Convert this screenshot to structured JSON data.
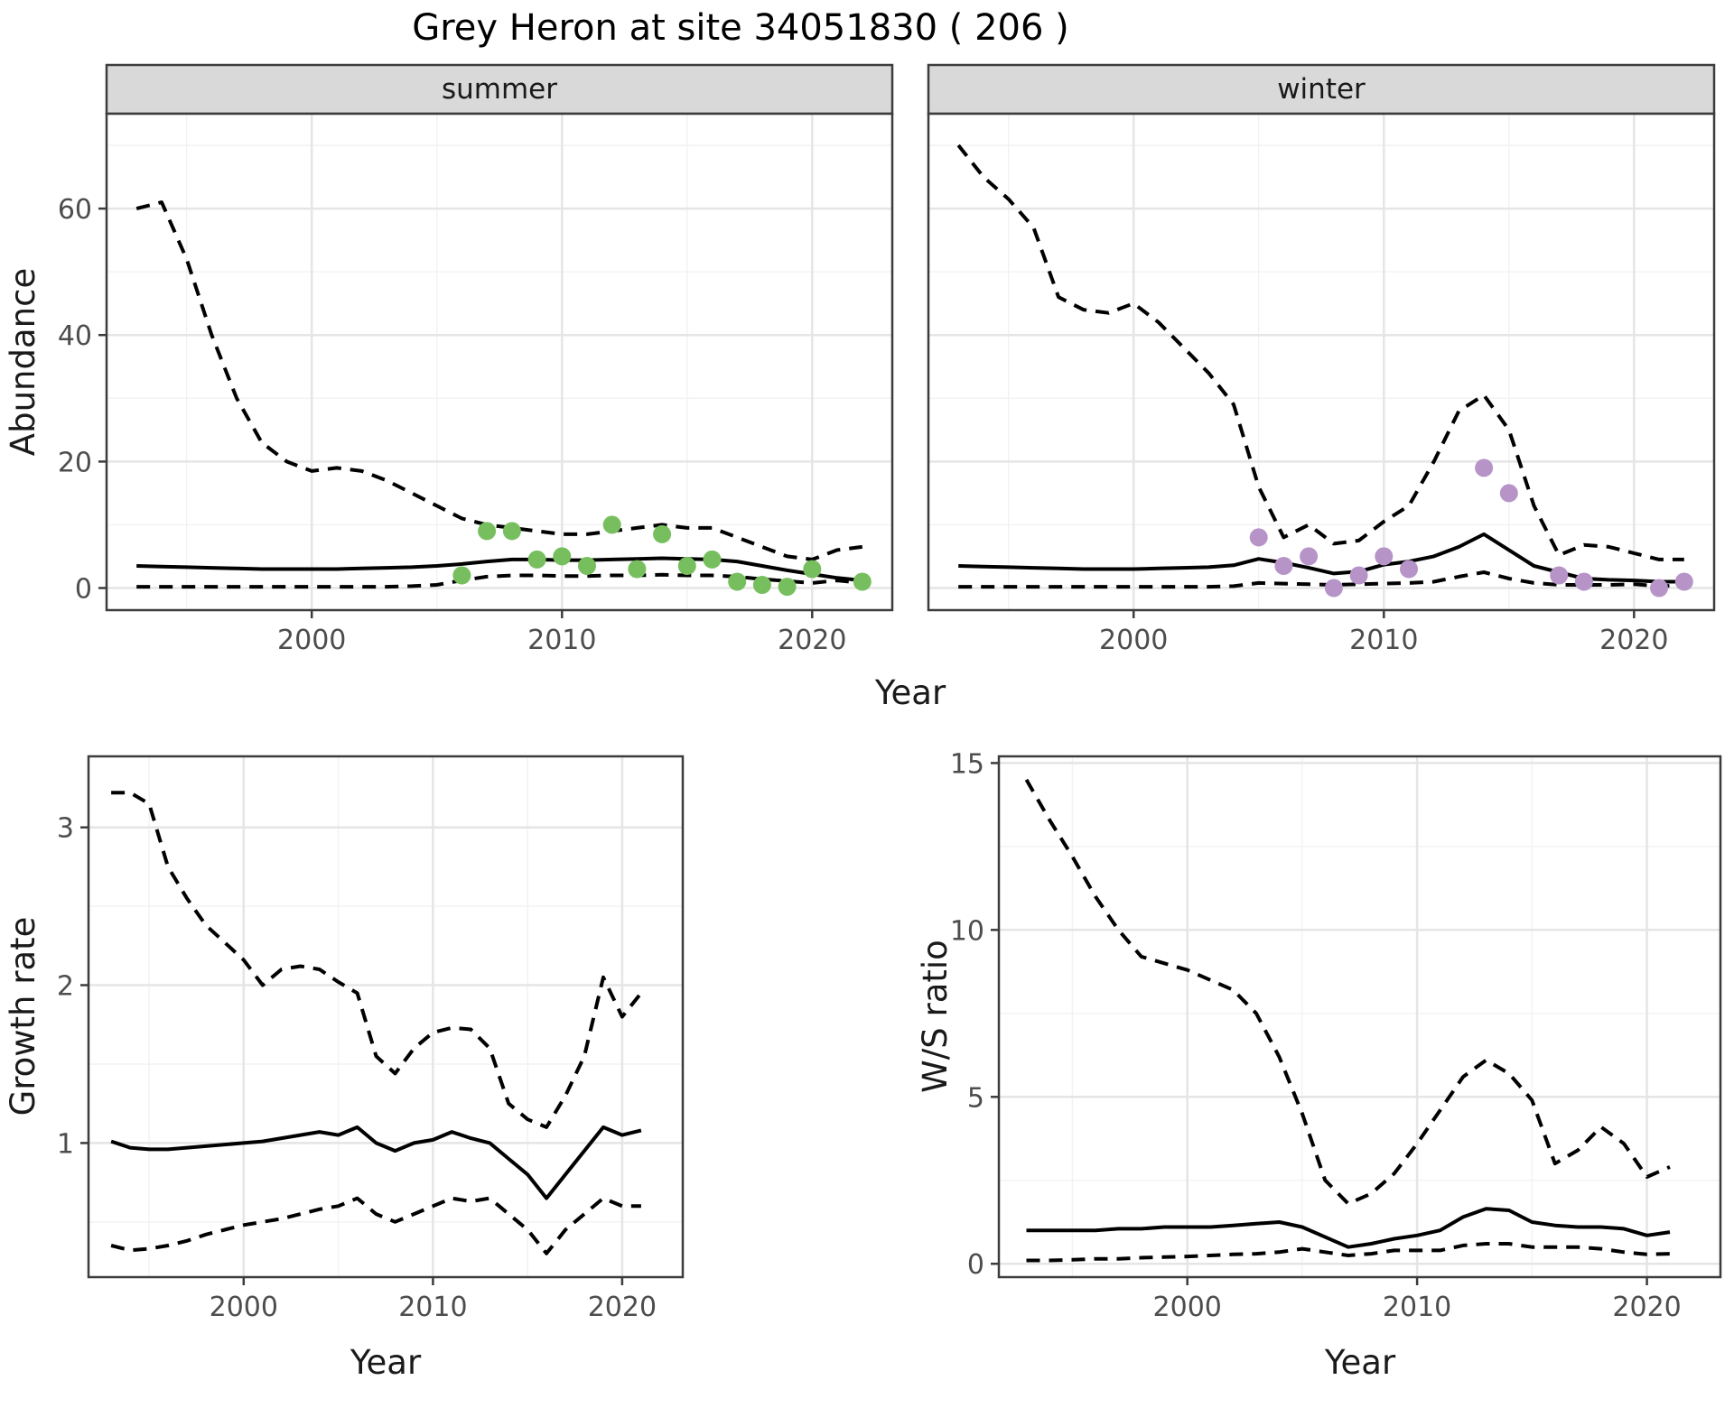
{
  "labels": {
    "title": "Grey Heron at site 34051830 ( 206 )",
    "abundance_ylabel": "Abundance",
    "top_xlabel": "Year",
    "growth_ylabel": "Growth rate",
    "growth_xlabel": "Year",
    "ws_ylabel": "W/S ratio",
    "ws_xlabel": "Year"
  },
  "colors": {
    "summer_point": "#77bf5e",
    "winter_point": "#b794c8",
    "line": "#000000",
    "strip_bg": "#d9d9d9",
    "panel_border": "#3c3c3c",
    "grid_major": "#e5e5e5",
    "grid_minor": "#f2f2f2",
    "axis_text": "#4d4d4d"
  },
  "chart_data": [
    {
      "id": "abundance-summer",
      "type": "line",
      "facet_label": "summer",
      "xlabel": "Year",
      "ylabel": "Abundance",
      "xlim": [
        1991.8,
        2023.2
      ],
      "ylim": [
        -3.5,
        75
      ],
      "x_ticks": [
        2000,
        2010,
        2020
      ],
      "x_minor": [
        1995,
        2005,
        2015
      ],
      "y_ticks": [
        0,
        20,
        40,
        60
      ],
      "y_minor": [
        10,
        30,
        50,
        70
      ],
      "grid": true,
      "legend": "none",
      "years": [
        1993,
        1994,
        1995,
        1996,
        1997,
        1998,
        1999,
        2000,
        2001,
        2002,
        2003,
        2004,
        2005,
        2006,
        2007,
        2008,
        2009,
        2010,
        2011,
        2012,
        2013,
        2014,
        2015,
        2016,
        2017,
        2018,
        2019,
        2020,
        2021,
        2022
      ],
      "series": [
        {
          "name": "upper-ci",
          "style": "dashed",
          "values": [
            60,
            61,
            52,
            40,
            30,
            23,
            20,
            18.5,
            19,
            18.5,
            17,
            15,
            13,
            11,
            10,
            9.5,
            9,
            8.5,
            8.5,
            9,
            9.5,
            10,
            9.5,
            9.5,
            8,
            6.5,
            5,
            4.5,
            6,
            6.5
          ]
        },
        {
          "name": "median",
          "style": "solid",
          "values": [
            3.5,
            3.4,
            3.3,
            3.2,
            3.1,
            3.0,
            3.0,
            3.0,
            3.0,
            3.1,
            3.2,
            3.3,
            3.5,
            3.8,
            4.2,
            4.5,
            4.5,
            4.4,
            4.4,
            4.5,
            4.6,
            4.7,
            4.6,
            4.5,
            4.2,
            3.5,
            2.8,
            2.2,
            1.6,
            1.2
          ]
        },
        {
          "name": "lower-ci",
          "style": "dashed",
          "values": [
            0.2,
            0.2,
            0.2,
            0.2,
            0.2,
            0.2,
            0.2,
            0.2,
            0.2,
            0.2,
            0.2,
            0.3,
            0.5,
            1.2,
            1.8,
            2.0,
            2.0,
            1.9,
            1.9,
            2.0,
            2.0,
            2.1,
            2.0,
            2.0,
            1.8,
            1.4,
            1.1,
            0.8,
            1.2,
            0.8
          ]
        }
      ],
      "points": {
        "name": "observed-summer",
        "color": "#77bf5e",
        "data": [
          [
            2006,
            2
          ],
          [
            2007,
            9
          ],
          [
            2008,
            9
          ],
          [
            2009,
            4.5
          ],
          [
            2010,
            5
          ],
          [
            2011,
            3.5
          ],
          [
            2012,
            10
          ],
          [
            2013,
            3
          ],
          [
            2014,
            8.5
          ],
          [
            2015,
            3.5
          ],
          [
            2016,
            4.5
          ],
          [
            2017,
            1
          ],
          [
            2018,
            0.5
          ],
          [
            2019,
            0.2
          ],
          [
            2020,
            3
          ],
          [
            2022,
            1
          ]
        ]
      },
      "show_y_tick_labels": true
    },
    {
      "id": "abundance-winter",
      "type": "line",
      "facet_label": "winter",
      "xlabel": "Year",
      "ylabel": "",
      "xlim": [
        1991.8,
        2023.2
      ],
      "ylim": [
        -3.5,
        75
      ],
      "x_ticks": [
        2000,
        2010,
        2020
      ],
      "x_minor": [
        1995,
        2005,
        2015
      ],
      "y_ticks": [
        0,
        20,
        40,
        60
      ],
      "y_minor": [
        10,
        30,
        50,
        70
      ],
      "grid": true,
      "legend": "none",
      "years": [
        1993,
        1994,
        1995,
        1996,
        1997,
        1998,
        1999,
        2000,
        2001,
        2002,
        2003,
        2004,
        2005,
        2006,
        2007,
        2008,
        2009,
        2010,
        2011,
        2012,
        2013,
        2014,
        2015,
        2016,
        2017,
        2018,
        2019,
        2020,
        2021,
        2022
      ],
      "series": [
        {
          "name": "upper-ci",
          "style": "dashed",
          "values": [
            70,
            65,
            61.5,
            57,
            46,
            44,
            43.5,
            45,
            42,
            38,
            34,
            29,
            16,
            8,
            10,
            7,
            7.5,
            10.5,
            13,
            20,
            28,
            30.5,
            25,
            13,
            5.2,
            6.8,
            6.5,
            5.5,
            4.5,
            4.5
          ]
        },
        {
          "name": "median",
          "style": "solid",
          "values": [
            3.5,
            3.4,
            3.3,
            3.2,
            3.1,
            3.0,
            3.0,
            3.0,
            3.1,
            3.2,
            3.3,
            3.6,
            4.6,
            4.0,
            3.2,
            2.3,
            2.6,
            3.7,
            4.2,
            5.0,
            6.5,
            8.5,
            6.0,
            3.5,
            2.5,
            1.5,
            1.3,
            1.2,
            1.0,
            1.0
          ]
        },
        {
          "name": "lower-ci",
          "style": "dashed",
          "values": [
            0.2,
            0.2,
            0.2,
            0.2,
            0.2,
            0.2,
            0.2,
            0.2,
            0.2,
            0.2,
            0.2,
            0.3,
            0.8,
            0.7,
            0.6,
            0.5,
            0.6,
            0.7,
            0.8,
            1.0,
            1.8,
            2.5,
            1.5,
            0.8,
            0.5,
            0.5,
            0.5,
            0.6,
            0.3,
            0.4
          ]
        }
      ],
      "points": {
        "name": "observed-winter",
        "color": "#b794c8",
        "data": [
          [
            2005,
            8
          ],
          [
            2006,
            3.5
          ],
          [
            2007,
            5
          ],
          [
            2008,
            0
          ],
          [
            2009,
            2
          ],
          [
            2010,
            5
          ],
          [
            2011,
            3
          ],
          [
            2014,
            19
          ],
          [
            2015,
            15
          ],
          [
            2017,
            2
          ],
          [
            2018,
            1
          ],
          [
            2021,
            0
          ],
          [
            2022,
            1
          ]
        ]
      },
      "show_y_tick_labels": false
    },
    {
      "id": "growth-rate",
      "type": "line",
      "facet_label": "",
      "xlabel": "Year",
      "ylabel": "Growth rate",
      "xlim": [
        1991.8,
        2023.2
      ],
      "ylim": [
        0.15,
        3.45
      ],
      "x_ticks": [
        2000,
        2010,
        2020
      ],
      "x_minor": [
        1995,
        2005,
        2015
      ],
      "y_ticks": [
        1,
        2,
        3
      ],
      "y_minor": [
        0.5,
        1.5,
        2.5
      ],
      "grid": true,
      "legend": "none",
      "years": [
        1993,
        1994,
        1995,
        1996,
        1997,
        1998,
        1999,
        2000,
        2001,
        2002,
        2003,
        2004,
        2005,
        2006,
        2007,
        2008,
        2009,
        2010,
        2011,
        2012,
        2013,
        2014,
        2015,
        2016,
        2017,
        2018,
        2019,
        2020,
        2021
      ],
      "series": [
        {
          "name": "upper-ci",
          "style": "dashed",
          "values": [
            3.22,
            3.22,
            3.15,
            2.75,
            2.55,
            2.38,
            2.27,
            2.16,
            2.0,
            2.1,
            2.12,
            2.1,
            2.02,
            1.95,
            1.55,
            1.44,
            1.6,
            1.7,
            1.73,
            1.72,
            1.6,
            1.25,
            1.15,
            1.1,
            1.3,
            1.55,
            2.05,
            1.8,
            1.95
          ]
        },
        {
          "name": "median",
          "style": "solid",
          "values": [
            1.01,
            0.97,
            0.96,
            0.96,
            0.97,
            0.98,
            0.99,
            1.0,
            1.01,
            1.03,
            1.05,
            1.07,
            1.05,
            1.1,
            1.0,
            0.95,
            1.0,
            1.02,
            1.07,
            1.03,
            1.0,
            0.9,
            0.8,
            0.65,
            0.8,
            0.95,
            1.1,
            1.05,
            1.08
          ]
        },
        {
          "name": "lower-ci",
          "style": "dashed",
          "values": [
            0.35,
            0.32,
            0.33,
            0.35,
            0.38,
            0.42,
            0.45,
            0.48,
            0.5,
            0.52,
            0.55,
            0.58,
            0.6,
            0.65,
            0.55,
            0.5,
            0.55,
            0.6,
            0.65,
            0.63,
            0.65,
            0.55,
            0.45,
            0.3,
            0.45,
            0.55,
            0.65,
            0.6,
            0.6
          ]
        }
      ],
      "points": null,
      "show_y_tick_labels": true
    },
    {
      "id": "ws-ratio",
      "type": "line",
      "facet_label": "",
      "xlabel": "Year",
      "ylabel": "W/S ratio",
      "xlim": [
        1991.8,
        2023.2
      ],
      "ylim": [
        -0.4,
        15.2
      ],
      "x_ticks": [
        2000,
        2010,
        2020
      ],
      "x_minor": [
        1995,
        2005,
        2015
      ],
      "y_ticks": [
        0,
        5,
        10,
        15
      ],
      "y_minor": [
        2.5,
        7.5,
        12.5
      ],
      "grid": true,
      "legend": "none",
      "years": [
        1993,
        1994,
        1995,
        1996,
        1997,
        1998,
        1999,
        2000,
        2001,
        2002,
        2003,
        2004,
        2005,
        2006,
        2007,
        2008,
        2009,
        2010,
        2011,
        2012,
        2013,
        2014,
        2015,
        2016,
        2017,
        2018,
        2019,
        2020,
        2021
      ],
      "series": [
        {
          "name": "upper-ci",
          "style": "dashed",
          "values": [
            14.5,
            13.3,
            12.2,
            11.0,
            10.0,
            9.2,
            9.0,
            8.8,
            8.5,
            8.2,
            7.5,
            6.2,
            4.5,
            2.5,
            1.8,
            2.1,
            2.7,
            3.6,
            4.6,
            5.6,
            6.1,
            5.7,
            4.9,
            3.0,
            3.4,
            4.1,
            3.6,
            2.6,
            2.9
          ]
        },
        {
          "name": "median",
          "style": "solid",
          "values": [
            1.0,
            1.0,
            1.0,
            1.0,
            1.05,
            1.05,
            1.1,
            1.1,
            1.1,
            1.15,
            1.2,
            1.25,
            1.1,
            0.8,
            0.5,
            0.6,
            0.75,
            0.85,
            1.0,
            1.4,
            1.65,
            1.6,
            1.25,
            1.15,
            1.1,
            1.1,
            1.05,
            0.85,
            0.95
          ]
        },
        {
          "name": "lower-ci",
          "style": "dashed",
          "values": [
            0.1,
            0.1,
            0.12,
            0.15,
            0.15,
            0.18,
            0.2,
            0.22,
            0.25,
            0.28,
            0.3,
            0.35,
            0.45,
            0.35,
            0.25,
            0.3,
            0.4,
            0.4,
            0.4,
            0.55,
            0.6,
            0.6,
            0.5,
            0.5,
            0.5,
            0.45,
            0.35,
            0.28,
            0.3
          ]
        }
      ],
      "points": null,
      "show_y_tick_labels": true
    }
  ]
}
